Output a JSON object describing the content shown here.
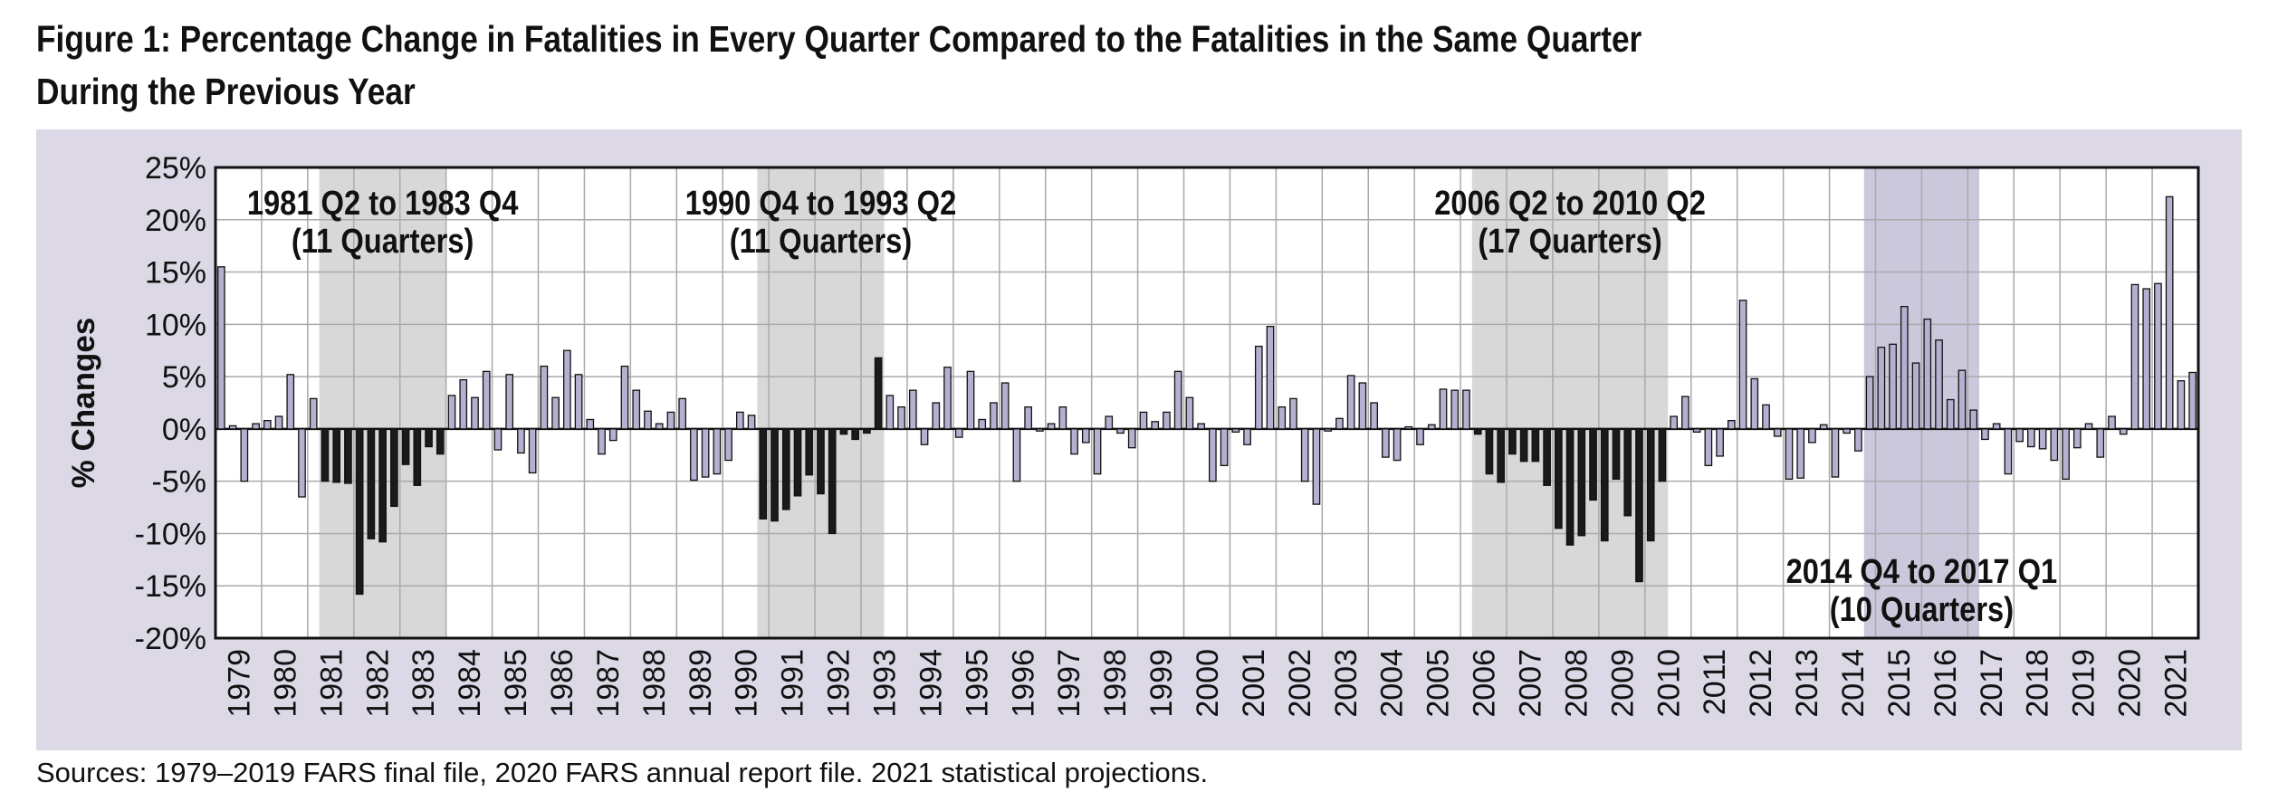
{
  "title": {
    "line1": "Figure 1: Percentage Change in Fatalities in Every Quarter Compared to the Fatalities in the Same Quarter",
    "line2": "During the Previous Year"
  },
  "sources": "Sources: 1979–2019 FARS final file, 2020 FARS annual report file. 2021 statistical projections.",
  "colors": {
    "panel_background": "#dcd8e6",
    "plot_background": "#ffffff",
    "normal_bar": "#b4b0cf",
    "decline_bar": "#1a1a1a",
    "decline_period_shade": "#d8d8d8",
    "increase_period_shade": "#ccc8dc",
    "grid": "#aaaaaa"
  },
  "chart_data": {
    "type": "bar",
    "title": "",
    "xlabel": "",
    "ylabel": "% Changes",
    "ylim": [
      -20,
      25
    ],
    "yticks": [
      "-20%",
      "-15%",
      "-10%",
      "-5%",
      "0%",
      "5%",
      "10%",
      "15%",
      "20%",
      "25%"
    ],
    "ytick_values": [
      -20,
      -15,
      -10,
      -5,
      0,
      5,
      10,
      15,
      20,
      25
    ],
    "grid": true,
    "years": [
      "1979",
      "1980",
      "1981",
      "1982",
      "1983",
      "1984",
      "1985",
      "1986",
      "1987",
      "1988",
      "1989",
      "1990",
      "1991",
      "1992",
      "1993",
      "1994",
      "1995",
      "1996",
      "1997",
      "1998",
      "1999",
      "2000",
      "2001",
      "2002",
      "2003",
      "2004",
      "2005",
      "2006",
      "2007",
      "2008",
      "2009",
      "2010",
      "2011",
      "2012",
      "2013",
      "2014",
      "2015",
      "2016",
      "2017",
      "2018",
      "2019",
      "2020",
      "2021"
    ],
    "quarter_values": [
      15.5,
      0.3,
      -5,
      0.5,
      0.8,
      1.2,
      5.2,
      -6.5,
      2.9,
      -5.0,
      -5.1,
      -5.2,
      -15.8,
      -10.5,
      -10.8,
      -7.4,
      -3.4,
      -5.4,
      -1.7,
      -2.4,
      3.2,
      4.7,
      3.0,
      5.5,
      -2.0,
      5.2,
      -2.3,
      -4.2,
      6.0,
      3.0,
      7.5,
      5.2,
      0.9,
      -2.4,
      -1.1,
      6.0,
      3.7,
      1.7,
      0.5,
      1.6,
      2.9,
      -4.9,
      -4.6,
      -4.3,
      -3.0,
      1.6,
      1.3,
      -8.6,
      -8.8,
      -7.7,
      -6.4,
      -4.4,
      -6.2,
      -10.0,
      -0.5,
      -1.0,
      -0.4,
      6.8,
      3.2,
      2.1,
      3.7,
      -1.5,
      2.5,
      5.9,
      -0.8,
      5.5,
      0.9,
      2.5,
      4.4,
      -5.0,
      2.1,
      -0.2,
      0.5,
      2.1,
      -2.4,
      -1.3,
      -4.3,
      1.2,
      -0.4,
      -1.8,
      1.6,
      0.7,
      1.6,
      5.5,
      3.0,
      0.5,
      -5.0,
      -3.5,
      -0.3,
      -1.5,
      7.9,
      9.8,
      2.1,
      2.9,
      -5.0,
      -7.2,
      -0.2,
      1.0,
      5.1,
      4.4,
      2.5,
      -2.7,
      -3.0,
      0.2,
      -1.5,
      0.4,
      3.8,
      3.7,
      3.7,
      -0.5,
      -4.3,
      -5.1,
      -2.4,
      -3.1,
      -3.1,
      -5.4,
      -9.5,
      -11.1,
      -10.2,
      -6.8,
      -10.7,
      -4.8,
      -8.3,
      -14.6,
      -10.7,
      -5.0,
      1.2,
      3.1,
      -0.3,
      -3.5,
      -2.6,
      0.8,
      12.3,
      4.8,
      2.3,
      -0.7,
      -4.8,
      -4.7,
      -1.3,
      0.4,
      -4.6,
      -0.4,
      -2.1,
      5.0,
      7.8,
      8.1,
      11.7,
      6.3,
      10.5,
      8.5,
      2.8,
      5.6,
      1.8,
      -1.0,
      0.5,
      -4.3,
      -1.2,
      -1.7,
      -1.9,
      -3.0,
      -4.8,
      -1.8,
      0.5,
      -2.7,
      1.2,
      -0.5,
      13.8,
      13.4,
      13.9,
      22.2,
      4.6,
      5.4
    ],
    "decline_periods": [
      {
        "label_line1": "1981 Q2 to 1983 Q4",
        "label_line2": "(11 Quarters)",
        "start_year": "1981",
        "start_quarter": 2,
        "end_year": "1983",
        "end_quarter": 4
      },
      {
        "label_line1": "1990 Q4 to 1993 Q2",
        "label_line2": "(11 Quarters)",
        "start_year": "1990",
        "start_quarter": 4,
        "end_year": "1993",
        "end_quarter": 2
      },
      {
        "label_line1": "2006 Q2 to 2010 Q2",
        "label_line2": "(17 Quarters)",
        "start_year": "2006",
        "start_quarter": 2,
        "end_year": "2010",
        "end_quarter": 2
      }
    ],
    "increase_periods": [
      {
        "label_line1": "2014 Q4 to 2017 Q1",
        "label_line2": "(10 Quarters)",
        "start_year": "2014",
        "start_quarter": 4,
        "end_year": "2017",
        "end_quarter": 1
      }
    ]
  }
}
